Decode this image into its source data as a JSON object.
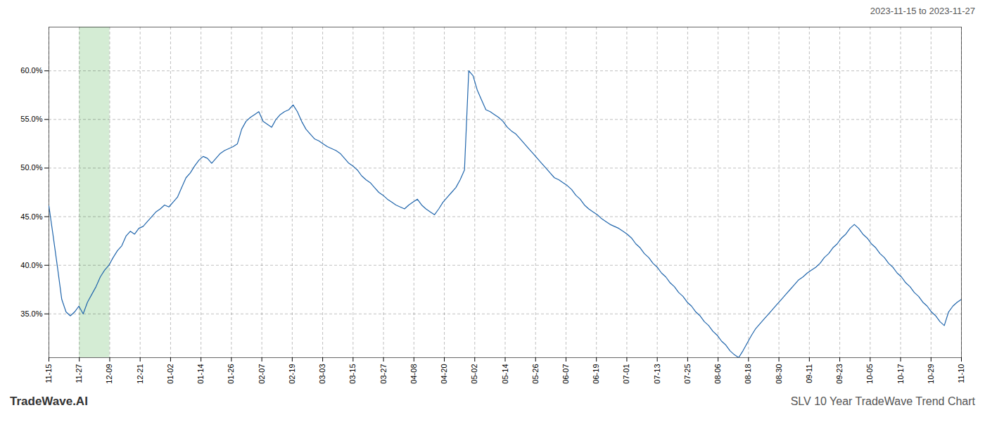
{
  "chart_data": {
    "type": "line",
    "title": "SLV 10 Year TradeWave Trend Chart",
    "subtitle": "2023-11-15 to 2023-11-27",
    "caption": "TradeWave.AI",
    "color": "#2166ac",
    "grid": true,
    "x": [
      0,
      1,
      2,
      3,
      4,
      5,
      6,
      7,
      8,
      9,
      10,
      11,
      12,
      13,
      14,
      15,
      16,
      17,
      18,
      19,
      20,
      21,
      22,
      23,
      24,
      25,
      26,
      27,
      28,
      29,
      30,
      31,
      32,
      33,
      34,
      35,
      36,
      37,
      38,
      39,
      40,
      41,
      42,
      43,
      44,
      45,
      46,
      47,
      48,
      49,
      50,
      51,
      52,
      53,
      54,
      55,
      56,
      57,
      58,
      59,
      60,
      61,
      62,
      63,
      64,
      65,
      66,
      67,
      68,
      69,
      70,
      71,
      72,
      73,
      74,
      75,
      76,
      77,
      78,
      79,
      80,
      81,
      82,
      83,
      84,
      85,
      86,
      87,
      88,
      89,
      90,
      91,
      92,
      93,
      94,
      95,
      96,
      97,
      98,
      99,
      100,
      101,
      102,
      103,
      104,
      105,
      106,
      107,
      108,
      109,
      110,
      111,
      112,
      113,
      114,
      115,
      116,
      117,
      118,
      119,
      120,
      121,
      122,
      123,
      124,
      125,
      126,
      127,
      128,
      129,
      130,
      131,
      132,
      133,
      134,
      135,
      136,
      137,
      138,
      139,
      140,
      141,
      142,
      143,
      144,
      145,
      146,
      147,
      148,
      149,
      150,
      151,
      152,
      153,
      154,
      155,
      156,
      157,
      158,
      159,
      160,
      161,
      162,
      163,
      164,
      165,
      166,
      167,
      168,
      169,
      170,
      171,
      172,
      173,
      174,
      175,
      176,
      177,
      178,
      179,
      180,
      181,
      182,
      183,
      184,
      185,
      186,
      187,
      188,
      189,
      190,
      191,
      192,
      193,
      194,
      195,
      196,
      197,
      198,
      199,
      200,
      201,
      202,
      203,
      204,
      205,
      206,
      207,
      208,
      209,
      210,
      211,
      212,
      213
    ],
    "values": [
      0.461,
      0.43,
      0.398,
      0.365,
      0.352,
      0.348,
      0.352,
      0.358,
      0.35,
      0.362,
      0.37,
      0.378,
      0.388,
      0.395,
      0.4,
      0.408,
      0.415,
      0.42,
      0.43,
      0.435,
      0.432,
      0.438,
      0.44,
      0.445,
      0.45,
      0.455,
      0.458,
      0.462,
      0.46,
      0.465,
      0.47,
      0.48,
      0.49,
      0.495,
      0.502,
      0.508,
      0.512,
      0.51,
      0.505,
      0.51,
      0.515,
      0.518,
      0.52,
      0.522,
      0.525,
      0.54,
      0.548,
      0.552,
      0.555,
      0.558,
      0.548,
      0.545,
      0.542,
      0.55,
      0.555,
      0.558,
      0.56,
      0.565,
      0.558,
      0.548,
      0.54,
      0.535,
      0.53,
      0.528,
      0.525,
      0.522,
      0.52,
      0.518,
      0.515,
      0.51,
      0.505,
      0.502,
      0.498,
      0.492,
      0.488,
      0.485,
      0.48,
      0.475,
      0.472,
      0.468,
      0.465,
      0.462,
      0.46,
      0.458,
      0.462,
      0.465,
      0.468,
      0.462,
      0.458,
      0.455,
      0.452,
      0.458,
      0.465,
      0.47,
      0.475,
      0.48,
      0.488,
      0.498,
      0.6,
      0.595,
      0.58,
      0.57,
      0.56,
      0.558,
      0.555,
      0.552,
      0.548,
      0.542,
      0.538,
      0.535,
      0.53,
      0.525,
      0.52,
      0.515,
      0.51,
      0.505,
      0.5,
      0.495,
      0.49,
      0.488,
      0.485,
      0.482,
      0.478,
      0.472,
      0.468,
      0.462,
      0.458,
      0.455,
      0.452,
      0.448,
      0.445,
      0.442,
      0.44,
      0.438,
      0.435,
      0.432,
      0.428,
      0.422,
      0.418,
      0.412,
      0.408,
      0.402,
      0.398,
      0.392,
      0.388,
      0.382,
      0.378,
      0.372,
      0.368,
      0.362,
      0.358,
      0.352,
      0.348,
      0.342,
      0.338,
      0.332,
      0.328,
      0.322,
      0.318,
      0.312,
      0.308,
      0.305,
      0.312,
      0.32,
      0.328,
      0.335,
      0.34,
      0.345,
      0.35,
      0.355,
      0.36,
      0.365,
      0.37,
      0.375,
      0.38,
      0.385,
      0.388,
      0.392,
      0.395,
      0.398,
      0.402,
      0.408,
      0.412,
      0.418,
      0.422,
      0.428,
      0.432,
      0.438,
      0.442,
      0.438,
      0.432,
      0.428,
      0.422,
      0.418,
      0.412,
      0.408,
      0.402,
      0.398,
      0.392,
      0.388,
      0.382,
      0.378,
      0.372,
      0.368,
      0.362,
      0.358,
      0.352,
      0.348,
      0.342,
      0.338,
      0.352,
      0.358,
      0.362,
      0.365
    ],
    "xlim": [
      0,
      213
    ],
    "xticks": [
      {
        "value": 0,
        "label": "11-15"
      },
      {
        "value": 7.1,
        "label": "11-27"
      },
      {
        "value": 14.2,
        "label": "12-09"
      },
      {
        "value": 21.3,
        "label": "12-21"
      },
      {
        "value": 28.4,
        "label": "01-02"
      },
      {
        "value": 35.5,
        "label": "01-14"
      },
      {
        "value": 42.6,
        "label": "01-26"
      },
      {
        "value": 49.7,
        "label": "02-07"
      },
      {
        "value": 56.8,
        "label": "02-19"
      },
      {
        "value": 63.9,
        "label": "03-03"
      },
      {
        "value": 71,
        "label": "03-15"
      },
      {
        "value": 78.1,
        "label": "03-27"
      },
      {
        "value": 85.2,
        "label": "04-08"
      },
      {
        "value": 92.3,
        "label": "04-20"
      },
      {
        "value": 99.4,
        "label": "05-02"
      },
      {
        "value": 106.5,
        "label": "05-14"
      },
      {
        "value": 113.6,
        "label": "05-26"
      },
      {
        "value": 120.7,
        "label": "06-07"
      },
      {
        "value": 127.8,
        "label": "06-19"
      },
      {
        "value": 134.9,
        "label": "07-01"
      },
      {
        "value": 142,
        "label": "07-13"
      },
      {
        "value": 149.1,
        "label": "07-25"
      },
      {
        "value": 156.2,
        "label": "08-06"
      },
      {
        "value": 163.3,
        "label": "08-18"
      },
      {
        "value": 170.4,
        "label": "08-30"
      },
      {
        "value": 177.5,
        "label": "09-11"
      },
      {
        "value": 184.6,
        "label": "09-23"
      },
      {
        "value": 191.7,
        "label": "10-05"
      },
      {
        "value": 198.8,
        "label": "10-17"
      },
      {
        "value": 205.9,
        "label": "10-29"
      },
      {
        "value": 213,
        "label": "11-10"
      }
    ],
    "ylim": [
      0.305,
      0.645
    ],
    "yticks": [
      {
        "value": 0.35,
        "label": "35.0%"
      },
      {
        "value": 0.4,
        "label": "40.0%"
      },
      {
        "value": 0.45,
        "label": "45.0%"
      },
      {
        "value": 0.5,
        "label": "50.0%"
      },
      {
        "value": 0.55,
        "label": "55.0%"
      },
      {
        "value": 0.6,
        "label": "60.0%"
      }
    ],
    "spans": [
      {
        "x": [
          7.1,
          14.2
        ],
        "color": "#d4ecd4"
      }
    ]
  }
}
